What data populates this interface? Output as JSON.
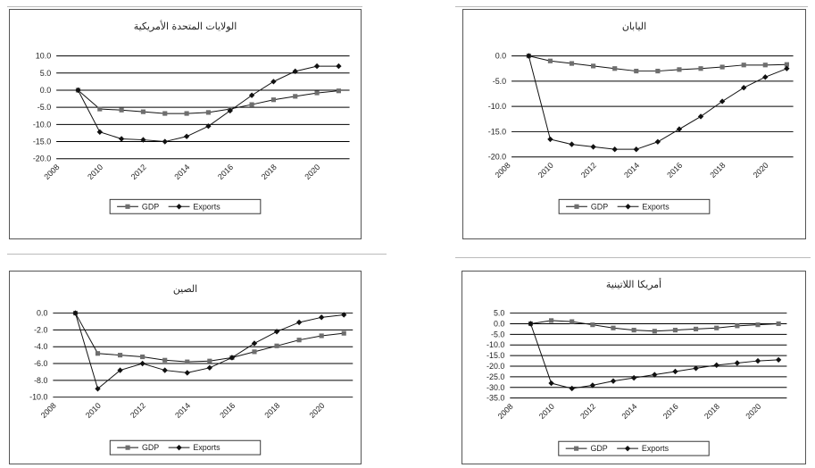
{
  "colors": {
    "line": "#111111",
    "grid": "#000000",
    "frame": "#555555",
    "gdp_marker": "#6e6e6e",
    "exports_marker": "#111111"
  },
  "chart_data": [
    {
      "type": "line",
      "title": "الولايات المتحدة الأمريكية",
      "x": [
        2009,
        2010,
        2011,
        2012,
        2013,
        2014,
        2015,
        2016,
        2017,
        2018,
        2019,
        2020,
        2021
      ],
      "xticks": [
        "2008",
        "2010",
        "2012",
        "2014",
        "2016",
        "2018",
        "2020"
      ],
      "yticks": [
        "10.0",
        "5.0",
        "0.0",
        "-5.0",
        "-10.0",
        "-15.0",
        "-20.0"
      ],
      "ylim": [
        -20,
        10
      ],
      "grid": true,
      "legend": "bottom",
      "series": [
        {
          "name": "GDP",
          "marker": "square",
          "values": [
            0,
            -5.5,
            -5.8,
            -6.3,
            -6.8,
            -6.8,
            -6.5,
            -5.5,
            -4.2,
            -2.8,
            -1.8,
            -0.8,
            -0.2
          ]
        },
        {
          "name": "Exports",
          "marker": "diamond",
          "values": [
            0,
            -12.2,
            -14.2,
            -14.5,
            -15,
            -13.5,
            -10.5,
            -6,
            -1.5,
            2.5,
            5.5,
            7,
            7
          ]
        }
      ]
    },
    {
      "type": "line",
      "title": "اليابان",
      "x": [
        2009,
        2010,
        2011,
        2012,
        2013,
        2014,
        2015,
        2016,
        2017,
        2018,
        2019,
        2020,
        2021
      ],
      "xticks": [
        "2008",
        "2010",
        "2012",
        "2014",
        "2016",
        "2018",
        "2020"
      ],
      "yticks": [
        "0.0",
        "-5.0",
        "-10.0",
        "-15.0",
        "-20.0"
      ],
      "ylim": [
        -20,
        0
      ],
      "grid": true,
      "legend": "bottom",
      "series": [
        {
          "name": "GDP",
          "marker": "square",
          "values": [
            0,
            -1,
            -1.5,
            -2,
            -2.5,
            -3,
            -3,
            -2.7,
            -2.5,
            -2.2,
            -1.8,
            -1.8,
            -1.7
          ]
        },
        {
          "name": "Exports",
          "marker": "diamond",
          "values": [
            0,
            -16.5,
            -17.5,
            -18,
            -18.5,
            -18.5,
            -17,
            -14.5,
            -12,
            -9,
            -6.3,
            -4.2,
            -2.5
          ]
        }
      ]
    },
    {
      "type": "line",
      "title": "الصين",
      "x": [
        2009,
        2010,
        2011,
        2012,
        2013,
        2014,
        2015,
        2016,
        2017,
        2018,
        2019,
        2020,
        2021
      ],
      "xticks": [
        "2008",
        "2010",
        "2012",
        "2014",
        "2016",
        "2018",
        "2020"
      ],
      "yticks": [
        "0.0",
        "-2.0",
        "-4.0",
        "-6.0",
        "-8.0",
        "-10.0"
      ],
      "ylim": [
        -10,
        0
      ],
      "grid": true,
      "legend": "bottom",
      "series": [
        {
          "name": "GDP",
          "marker": "square",
          "values": [
            0,
            -4.8,
            -5,
            -5.2,
            -5.6,
            -5.8,
            -5.7,
            -5.3,
            -4.6,
            -3.9,
            -3.2,
            -2.7,
            -2.4
          ]
        },
        {
          "name": "Exports",
          "marker": "diamond",
          "values": [
            0,
            -9,
            -6.8,
            -6,
            -6.8,
            -7.1,
            -6.5,
            -5.3,
            -3.6,
            -2.2,
            -1.1,
            -0.5,
            -0.2
          ]
        }
      ]
    },
    {
      "type": "line",
      "title": "أمريكا اللاتينية",
      "x": [
        2009,
        2010,
        2011,
        2012,
        2013,
        2014,
        2015,
        2016,
        2017,
        2018,
        2019,
        2020,
        2021
      ],
      "xticks": [
        "2008",
        "2010",
        "2012",
        "2014",
        "2016",
        "2018",
        "2020"
      ],
      "yticks": [
        "5.0",
        "0.0",
        "-5.0",
        "-10.0",
        "-15.0",
        "-20.0",
        "-25.0",
        "-30.0",
        "-35.0"
      ],
      "ylim": [
        -35,
        5
      ],
      "grid": true,
      "legend": "bottom",
      "series": [
        {
          "name": "GDP",
          "marker": "square",
          "values": [
            0,
            1.5,
            1,
            -0.5,
            -2,
            -3,
            -3.5,
            -3,
            -2.5,
            -2,
            -1,
            -0.5,
            0
          ]
        },
        {
          "name": "Exports",
          "marker": "diamond",
          "values": [
            0,
            -28,
            -30.5,
            -29,
            -27,
            -25.5,
            -24,
            -22.5,
            -21,
            -19.5,
            -18.5,
            -17.5,
            -17
          ]
        }
      ]
    }
  ]
}
